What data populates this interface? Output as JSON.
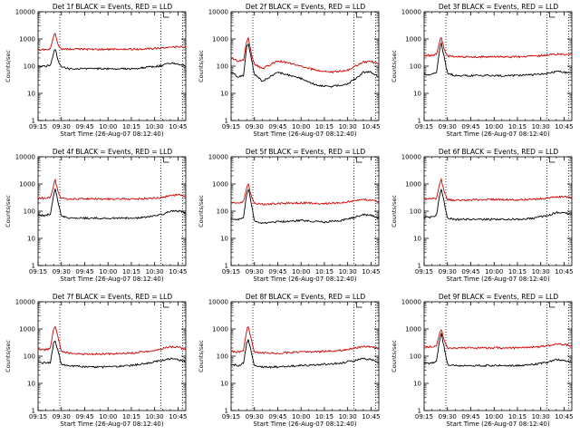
{
  "chart_data": [
    {
      "type": "line",
      "title": "Det 1f BLACK = Events, RED = LLD",
      "xlabel": "Start Time (26-Aug-07 08:12:40)",
      "ylabel": "Counts/sec",
      "yscale": "log",
      "ylim": [
        1,
        10000
      ],
      "xlim": [
        "09:15",
        "10:50"
      ],
      "x_ticks": [
        "09:15",
        "09:30",
        "09:45",
        "10:00",
        "10:15",
        "10:30",
        "10:45"
      ],
      "y_ticks": [
        "1",
        "10",
        "100",
        "1000",
        "10000"
      ],
      "vlines": [
        "09:29",
        "10:34",
        "10:48"
      ],
      "series": [
        {
          "color": "#000000",
          "x": [
            "09:15",
            "09:20",
            "09:23",
            "09:25",
            "09:26",
            "09:28",
            "09:30",
            "09:35",
            "09:45",
            "10:00",
            "10:15",
            "10:25",
            "10:35",
            "10:40",
            "10:45",
            "10:50"
          ],
          "y": [
            100,
            100,
            110,
            300,
            450,
            150,
            95,
            80,
            80,
            80,
            80,
            90,
            105,
            130,
            120,
            105
          ]
        },
        {
          "color": "#d00000",
          "x": [
            "09:15",
            "09:20",
            "09:23",
            "09:25",
            "09:26",
            "09:28",
            "09:30",
            "09:35",
            "09:45",
            "10:00",
            "10:15",
            "10:25",
            "10:35",
            "10:40",
            "10:45",
            "10:50"
          ],
          "y": [
            400,
            400,
            450,
            1200,
            1700,
            600,
            420,
            420,
            420,
            410,
            420,
            430,
            470,
            530,
            510,
            500
          ]
        }
      ]
    },
    {
      "type": "line",
      "title": "Det 2f BLACK = Events, RED = LLD",
      "xlabel": "Start Time (26-Aug-07 08:12:40)",
      "ylabel": "Counts/sec",
      "yscale": "log",
      "ylim": [
        1,
        10000
      ],
      "xlim": [
        "09:15",
        "10:50"
      ],
      "x_ticks": [
        "09:15",
        "09:30",
        "09:45",
        "10:00",
        "10:15",
        "10:30",
        "10:45"
      ],
      "y_ticks": [
        "1",
        "10",
        "100",
        "1000",
        "10000"
      ],
      "vlines": [
        "09:29",
        "10:34",
        "10:48"
      ],
      "series": [
        {
          "color": "#000000",
          "x": [
            "09:15",
            "09:20",
            "09:23",
            "09:25",
            "09:26",
            "09:28",
            "09:30",
            "09:35",
            "09:45",
            "10:00",
            "10:10",
            "10:20",
            "10:30",
            "10:35",
            "10:40",
            "10:45",
            "10:50"
          ],
          "y": [
            60,
            40,
            45,
            500,
            700,
            200,
            50,
            28,
            60,
            35,
            20,
            18,
            22,
            35,
            60,
            60,
            40
          ]
        },
        {
          "color": "#d00000",
          "x": [
            "09:15",
            "09:20",
            "09:23",
            "09:25",
            "09:26",
            "09:28",
            "09:30",
            "09:35",
            "09:45",
            "10:00",
            "10:10",
            "10:20",
            "10:30",
            "10:35",
            "10:40",
            "10:45",
            "10:50"
          ],
          "y": [
            200,
            150,
            170,
            800,
            1100,
            300,
            120,
            80,
            160,
            100,
            70,
            60,
            70,
            100,
            140,
            150,
            120
          ]
        }
      ]
    },
    {
      "type": "line",
      "title": "Det 3f BLACK = Events, RED = LLD",
      "xlabel": "Start Time (26-Aug-07 08:12:40)",
      "ylabel": "Counts/sec",
      "yscale": "log",
      "ylim": [
        1,
        10000
      ],
      "xlim": [
        "09:15",
        "10:50"
      ],
      "x_ticks": [
        "09:15",
        "09:30",
        "09:45",
        "10:00",
        "10:15",
        "10:30",
        "10:45"
      ],
      "y_ticks": [
        "1",
        "10",
        "100",
        "1000",
        "10000"
      ],
      "vlines": [
        "09:29",
        "10:34",
        "10:48"
      ],
      "series": [
        {
          "color": "#000000",
          "x": [
            "09:15",
            "09:20",
            "09:23",
            "09:25",
            "09:26",
            "09:28",
            "09:30",
            "09:35",
            "09:45",
            "10:00",
            "10:15",
            "10:25",
            "10:35",
            "10:40",
            "10:45",
            "10:50"
          ],
          "y": [
            50,
            50,
            60,
            400,
            700,
            200,
            55,
            45,
            45,
            45,
            45,
            48,
            55,
            65,
            60,
            55
          ]
        },
        {
          "color": "#d00000",
          "x": [
            "09:15",
            "09:20",
            "09:23",
            "09:25",
            "09:26",
            "09:28",
            "09:30",
            "09:35",
            "09:45",
            "10:00",
            "10:15",
            "10:25",
            "10:35",
            "10:40",
            "10:45",
            "10:50"
          ],
          "y": [
            250,
            250,
            280,
            800,
            1200,
            400,
            240,
            220,
            220,
            220,
            220,
            230,
            260,
            280,
            270,
            250
          ]
        }
      ]
    },
    {
      "type": "line",
      "title": "Det 4f BLACK = Events, RED = LLD",
      "xlabel": "Start Time (26-Aug-07 08:12:40)",
      "ylabel": "Counts/sec",
      "yscale": "log",
      "ylim": [
        1,
        10000
      ],
      "xlim": [
        "09:15",
        "10:50"
      ],
      "x_ticks": [
        "09:15",
        "09:30",
        "09:45",
        "10:00",
        "10:15",
        "10:30",
        "10:45"
      ],
      "y_ticks": [
        "1",
        "10",
        "100",
        "1000",
        "10000"
      ],
      "vlines": [
        "09:29",
        "10:34",
        "10:48"
      ],
      "series": [
        {
          "color": "#000000",
          "x": [
            "09:15",
            "09:20",
            "09:23",
            "09:25",
            "09:26",
            "09:28",
            "09:30",
            "09:35",
            "09:45",
            "10:00",
            "10:15",
            "10:25",
            "10:35",
            "10:40",
            "10:45",
            "10:50"
          ],
          "y": [
            70,
            70,
            80,
            400,
            700,
            200,
            65,
            55,
            55,
            55,
            55,
            60,
            75,
            100,
            100,
            90
          ]
        },
        {
          "color": "#d00000",
          "x": [
            "09:15",
            "09:20",
            "09:23",
            "09:25",
            "09:26",
            "09:28",
            "09:30",
            "09:35",
            "09:45",
            "10:00",
            "10:15",
            "10:25",
            "10:35",
            "10:40",
            "10:45",
            "10:50"
          ],
          "y": [
            300,
            300,
            330,
            900,
            1400,
            500,
            290,
            280,
            280,
            280,
            280,
            290,
            320,
            380,
            400,
            370
          ]
        }
      ]
    },
    {
      "type": "line",
      "title": "Det 5f BLACK = Events, RED = LLD",
      "xlabel": "Start Time (26-Aug-07 08:12:40)",
      "ylabel": "Counts/sec",
      "yscale": "log",
      "ylim": [
        1,
        10000
      ],
      "xlim": [
        "09:15",
        "10:50"
      ],
      "x_ticks": [
        "09:15",
        "09:30",
        "09:45",
        "10:00",
        "10:15",
        "10:30",
        "10:45"
      ],
      "y_ticks": [
        "1",
        "10",
        "100",
        "1000",
        "10000"
      ],
      "vlines": [
        "09:29",
        "10:34",
        "10:48"
      ],
      "series": [
        {
          "color": "#000000",
          "x": [
            "09:15",
            "09:20",
            "09:23",
            "09:25",
            "09:26",
            "09:28",
            "09:30",
            "09:35",
            "09:45",
            "10:00",
            "10:15",
            "10:25",
            "10:35",
            "10:40",
            "10:45",
            "10:50"
          ],
          "y": [
            50,
            50,
            60,
            400,
            700,
            200,
            40,
            35,
            40,
            45,
            40,
            45,
            60,
            75,
            70,
            55
          ]
        },
        {
          "color": "#d00000",
          "x": [
            "09:15",
            "09:20",
            "09:23",
            "09:25",
            "09:26",
            "09:28",
            "09:30",
            "09:35",
            "09:45",
            "10:00",
            "10:15",
            "10:25",
            "10:35",
            "10:40",
            "10:45",
            "10:50"
          ],
          "y": [
            200,
            200,
            220,
            700,
            1100,
            350,
            190,
            180,
            190,
            200,
            190,
            200,
            240,
            270,
            260,
            230
          ]
        }
      ]
    },
    {
      "type": "line",
      "title": "Det 6f BLACK = Events, RED = LLD",
      "xlabel": "Start Time (26-Aug-07 08:12:40)",
      "ylabel": "Counts/sec",
      "yscale": "log",
      "ylim": [
        1,
        10000
      ],
      "xlim": [
        "09:15",
        "10:50"
      ],
      "x_ticks": [
        "09:15",
        "09:30",
        "09:45",
        "10:00",
        "10:15",
        "10:30",
        "10:45"
      ],
      "y_ticks": [
        "1",
        "10",
        "100",
        "1000",
        "10000"
      ],
      "vlines": [
        "09:29",
        "10:34",
        "10:48"
      ],
      "series": [
        {
          "color": "#000000",
          "x": [
            "09:15",
            "09:20",
            "09:23",
            "09:25",
            "09:26",
            "09:28",
            "09:30",
            "09:35",
            "09:45",
            "10:00",
            "10:15",
            "10:25",
            "10:35",
            "10:40",
            "10:45",
            "10:50"
          ],
          "y": [
            60,
            60,
            70,
            400,
            650,
            200,
            55,
            50,
            50,
            50,
            50,
            55,
            70,
            90,
            85,
            75
          ]
        },
        {
          "color": "#d00000",
          "x": [
            "09:15",
            "09:20",
            "09:23",
            "09:25",
            "09:26",
            "09:28",
            "09:30",
            "09:35",
            "09:45",
            "10:00",
            "10:15",
            "10:25",
            "10:35",
            "10:40",
            "10:45",
            "10:50"
          ],
          "y": [
            280,
            280,
            300,
            1000,
            1500,
            500,
            270,
            250,
            260,
            270,
            260,
            270,
            300,
            340,
            340,
            310
          ]
        }
      ]
    },
    {
      "type": "line",
      "title": "Det 7f BLACK = Events, RED = LLD",
      "xlabel": "Start Time (26-Aug-07 08:12:40)",
      "ylabel": "Counts/sec",
      "yscale": "log",
      "ylim": [
        1,
        10000
      ],
      "xlim": [
        "09:15",
        "10:50"
      ],
      "x_ticks": [
        "09:15",
        "09:30",
        "09:45",
        "10:00",
        "10:15",
        "10:30",
        "10:45"
      ],
      "y_ticks": [
        "1",
        "10",
        "100",
        "1000",
        "10000"
      ],
      "vlines": [
        "09:29",
        "10:34",
        "10:48"
      ],
      "series": [
        {
          "color": "#000000",
          "x": [
            "09:15",
            "09:20",
            "09:23",
            "09:25",
            "09:26",
            "09:28",
            "09:30",
            "09:35",
            "09:45",
            "10:00",
            "10:15",
            "10:25",
            "10:35",
            "10:40",
            "10:45",
            "10:50"
          ],
          "y": [
            60,
            55,
            60,
            300,
            350,
            150,
            50,
            45,
            40,
            40,
            45,
            55,
            70,
            80,
            75,
            60
          ]
        },
        {
          "color": "#d00000",
          "x": [
            "09:15",
            "09:20",
            "09:23",
            "09:25",
            "09:26",
            "09:28",
            "09:30",
            "09:35",
            "09:45",
            "10:00",
            "10:15",
            "10:25",
            "10:35",
            "10:40",
            "10:45",
            "10:50"
          ],
          "y": [
            180,
            170,
            200,
            1000,
            1300,
            450,
            150,
            130,
            120,
            120,
            130,
            150,
            190,
            220,
            210,
            180
          ]
        }
      ]
    },
    {
      "type": "line",
      "title": "Det 8f BLACK = Events, RED = LLD",
      "xlabel": "Start Time (26-Aug-07 08:12:40)",
      "ylabel": "Counts/sec",
      "yscale": "log",
      "ylim": [
        1,
        10000
      ],
      "xlim": [
        "09:15",
        "10:50"
      ],
      "x_ticks": [
        "09:15",
        "09:30",
        "09:45",
        "10:00",
        "10:15",
        "10:30",
        "10:45"
      ],
      "y_ticks": [
        "1",
        "10",
        "100",
        "1000",
        "10000"
      ],
      "vlines": [
        "09:29",
        "10:34",
        "10:48"
      ],
      "series": [
        {
          "color": "#000000",
          "x": [
            "09:15",
            "09:20",
            "09:23",
            "09:25",
            "09:26",
            "09:28",
            "09:30",
            "09:35",
            "09:45",
            "10:00",
            "10:15",
            "10:25",
            "10:35",
            "10:40",
            "10:45",
            "10:50"
          ],
          "y": [
            50,
            45,
            55,
            300,
            400,
            150,
            45,
            40,
            40,
            45,
            50,
            55,
            70,
            80,
            75,
            60
          ]
        },
        {
          "color": "#d00000",
          "x": [
            "09:15",
            "09:20",
            "09:23",
            "09:25",
            "09:26",
            "09:28",
            "09:30",
            "09:35",
            "09:45",
            "10:00",
            "10:15",
            "10:25",
            "10:35",
            "10:40",
            "10:45",
            "10:50"
          ],
          "y": [
            150,
            140,
            170,
            900,
            1200,
            400,
            140,
            130,
            130,
            140,
            150,
            160,
            200,
            230,
            220,
            190
          ]
        }
      ]
    },
    {
      "type": "line",
      "title": "Det 9f BLACK = Events, RED = LLD",
      "xlabel": "Start Time (26-Aug-07 08:12:40)",
      "ylabel": "Counts/sec",
      "yscale": "log",
      "ylim": [
        1,
        10000
      ],
      "xlim": [
        "09:15",
        "10:50"
      ],
      "x_ticks": [
        "09:15",
        "09:30",
        "09:45",
        "10:00",
        "10:15",
        "10:30",
        "10:45"
      ],
      "y_ticks": [
        "1",
        "10",
        "100",
        "1000",
        "10000"
      ],
      "vlines": [
        "09:29",
        "10:34",
        "10:48"
      ],
      "series": [
        {
          "color": "#000000",
          "x": [
            "09:15",
            "09:20",
            "09:23",
            "09:25",
            "09:26",
            "09:28",
            "09:30",
            "09:35",
            "09:45",
            "10:00",
            "10:15",
            "10:25",
            "10:35",
            "10:40",
            "10:45",
            "10:50"
          ],
          "y": [
            55,
            55,
            65,
            400,
            700,
            200,
            50,
            45,
            45,
            45,
            45,
            50,
            60,
            75,
            70,
            60
          ]
        },
        {
          "color": "#d00000",
          "x": [
            "09:15",
            "09:20",
            "09:23",
            "09:25",
            "09:26",
            "09:28",
            "09:30",
            "09:35",
            "09:45",
            "10:00",
            "10:15",
            "10:25",
            "10:35",
            "10:40",
            "10:45",
            "10:50"
          ],
          "y": [
            220,
            220,
            250,
            700,
            1000,
            350,
            200,
            200,
            200,
            200,
            200,
            210,
            240,
            280,
            270,
            240
          ]
        }
      ]
    }
  ]
}
